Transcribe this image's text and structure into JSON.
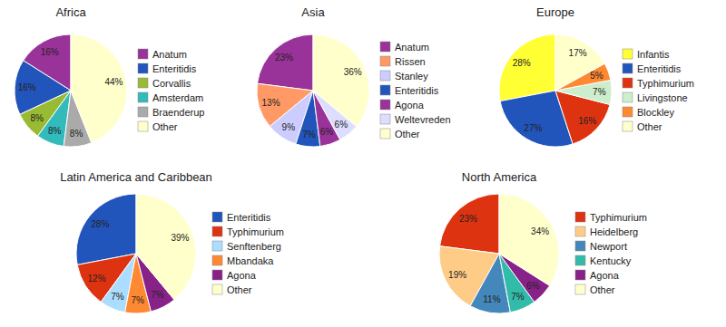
{
  "chart_data": [
    {
      "type": "pie",
      "title": "Africa",
      "categories": [
        "Anatum",
        "Enteritidis",
        "Corvallis",
        "Amsterdam",
        "Braenderup",
        "Other"
      ],
      "values": [
        16,
        16,
        8,
        8,
        8,
        44
      ],
      "value_labels": [
        "16%",
        "16%",
        "8%",
        "8%",
        "8%",
        "44%"
      ],
      "colors": [
        "#993399",
        "#2255BB",
        "#99BB33",
        "#33BBBB",
        "#AAAAAA",
        "#FFFFCC"
      ],
      "data_labels": true,
      "legend": "right"
    },
    {
      "type": "pie",
      "title": "Asia",
      "categories": [
        "Anatum",
        "Rissen",
        "Stanley",
        "Enteritidis",
        "Agona",
        "Weltevreden",
        "Other"
      ],
      "values": [
        23,
        13,
        9,
        7,
        6,
        6,
        36
      ],
      "value_labels": [
        "23%",
        "13%",
        "9%",
        "7%",
        "6%",
        "6%",
        "36%"
      ],
      "colors": [
        "#993399",
        "#FF9966",
        "#CCCCFF",
        "#2255BB",
        "#993399",
        "#DDDDFF",
        "#FFFFCC"
      ],
      "data_labels": true,
      "legend": "right"
    },
    {
      "type": "pie",
      "title": "Europe",
      "categories": [
        "Infantis",
        "Enteritidis",
        "Typhimurium",
        "Livingstone",
        "Blockley",
        "Other"
      ],
      "values": [
        28,
        27,
        16,
        7,
        5,
        17
      ],
      "value_labels": [
        "28%",
        "27%",
        "16%",
        "7%",
        "5%",
        "17%"
      ],
      "colors": [
        "#FFFF33",
        "#2255BB",
        "#DD3311",
        "#CCEECC",
        "#FF8833",
        "#FFFFCC"
      ],
      "data_labels": true,
      "legend": "right"
    },
    {
      "type": "pie",
      "title": "Latin America and Caribbean",
      "categories": [
        "Enteritidis",
        "Typhimurium",
        "Senftenberg",
        "Mbandaka",
        "Agona",
        "Other"
      ],
      "values": [
        28,
        12,
        7,
        7,
        7,
        39
      ],
      "value_labels": [
        "28%",
        "12%",
        "7%",
        "7%",
        "7%",
        "39%"
      ],
      "colors": [
        "#2255BB",
        "#DD3311",
        "#AADDFF",
        "#FF8833",
        "#882288",
        "#FFFFCC"
      ],
      "data_labels": true,
      "legend": "right"
    },
    {
      "type": "pie",
      "title": "North America",
      "categories": [
        "Typhimurium",
        "Heidelberg",
        "Newport",
        "Kentucky",
        "Agona",
        "Other"
      ],
      "values": [
        23,
        19,
        11,
        7,
        6,
        34
      ],
      "value_labels": [
        "23%",
        "19%",
        "11%",
        "7%",
        "6%",
        "34%"
      ],
      "colors": [
        "#DD3311",
        "#FFCC88",
        "#4488BB",
        "#33BBAA",
        "#882288",
        "#FFFFCC"
      ],
      "data_labels": true,
      "legend": "right"
    }
  ]
}
